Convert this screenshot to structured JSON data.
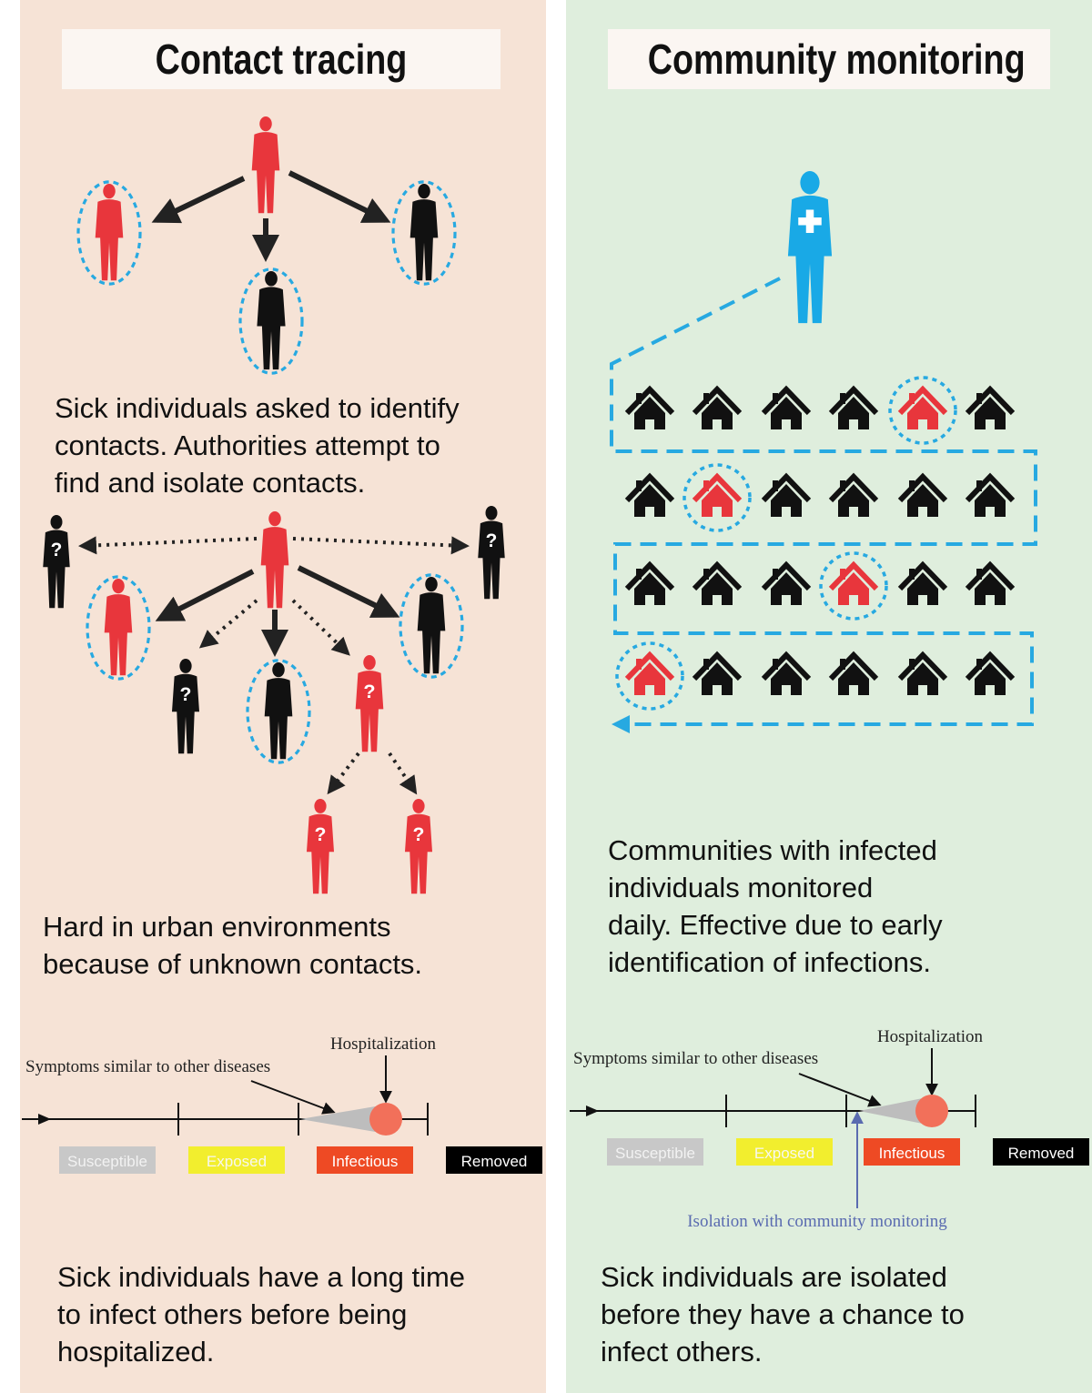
{
  "colors": {
    "left_bg": "#f6e3d6",
    "right_bg": "#dfeedd",
    "sick_red": "#e8363c",
    "contact_black": "#111111",
    "ring_blue": "#27a9e1",
    "worker_blue": "#19a9e6",
    "susceptible": "#c8c8c8",
    "exposed": "#f2ee2e",
    "infectious": "#ee4a24",
    "removed": "#000000",
    "hospital_dot": "#f2705a",
    "isolation_arrow": "#5a6bb0"
  },
  "left": {
    "title": "Contact tracing",
    "text1": "Sick individuals asked to identify\ncontacts. Authorities attempt to\nfind and isolate contacts.",
    "text2": "Hard in urban environments\nbecause of unknown contacts.",
    "text3": "Sick individuals have a long time\nto infect others before being\nhospitalized.",
    "unknown_mark": "?",
    "timeline": {
      "hospitalization_label": "Hospitalization",
      "symptoms_label": "Symptoms similar to other diseases",
      "stages": [
        "Susceptible",
        "Exposed",
        "Infectious",
        "Removed"
      ]
    }
  },
  "right": {
    "title": "Community monitoring",
    "text1": "Communities with infected\nindividuals monitored\ndaily. Effective due to early\nidentification of infections.",
    "text2": "Sick individuals are isolated\nbefore they have a chance to\ninfect others.",
    "houses": {
      "rows": 4,
      "cols": 6,
      "infected": [
        [
          0,
          4
        ],
        [
          1,
          1
        ],
        [
          2,
          3
        ],
        [
          3,
          0
        ]
      ]
    },
    "timeline": {
      "hospitalization_label": "Hospitalization",
      "symptoms_label": "Symptoms similar to other diseases",
      "isolation_label": "Isolation with community monitoring",
      "stages": [
        "Susceptible",
        "Exposed",
        "Infectious",
        "Removed"
      ]
    }
  }
}
